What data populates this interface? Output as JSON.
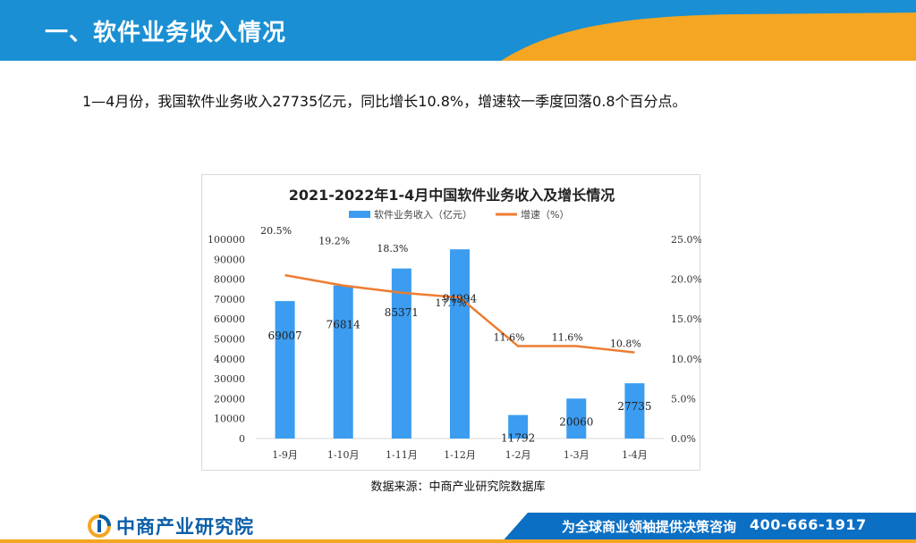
{
  "header": {
    "title": "一、软件业务收入情况"
  },
  "summary": {
    "text": "1—4月份，我国软件业务收入27735亿元，同比增长10.8%，增速较一季度回落0.8个百分点。"
  },
  "source": {
    "text": "数据来源：中商产业研究院数据库"
  },
  "footer": {
    "logo_text": "中商产业研究院",
    "slogan": "为全球商业领袖提供决策咨询",
    "phone": "400-666-1917"
  },
  "colors": {
    "header_blue": "#1a8fd3",
    "header_orange": "#f5a623",
    "bar_blue": "#3b9cf0",
    "line_orange": "#ed7d31",
    "footer_blue": "#0b6fc4"
  },
  "chart_data": {
    "type": "bar",
    "title": "2021-2022年1-4月中国软件业务收入及增长情况",
    "categories": [
      "1-9月",
      "1-10月",
      "1-11月",
      "1-12月",
      "1-2月",
      "1-3月",
      "1-4月"
    ],
    "series": [
      {
        "name": "软件业务收入（亿元）",
        "type": "bar",
        "axis": "left",
        "values": [
          69007,
          76814,
          85371,
          94994,
          11792,
          20060,
          27735
        ],
        "labels": [
          "69007",
          "76814",
          "85371",
          "94994",
          "11792",
          "20060",
          "27735"
        ]
      },
      {
        "name": "增速（%）",
        "type": "line",
        "axis": "right",
        "values": [
          20.5,
          19.2,
          18.3,
          17.7,
          11.6,
          11.6,
          10.8
        ],
        "labels": [
          "20.5%",
          "19.2%",
          "18.3%",
          "17.7%",
          "11.6%",
          "11.6%",
          "10.8%"
        ]
      }
    ],
    "y_left": {
      "range": [
        0,
        100000
      ],
      "ticks": [
        "0",
        "10000",
        "20000",
        "30000",
        "40000",
        "50000",
        "60000",
        "70000",
        "80000",
        "90000",
        "100000"
      ]
    },
    "y_right": {
      "range": [
        0,
        25
      ],
      "ticks": [
        "0.0%",
        "5.0%",
        "10.0%",
        "15.0%",
        "20.0%",
        "25.0%"
      ]
    },
    "legend_position": "top",
    "grid": false
  }
}
